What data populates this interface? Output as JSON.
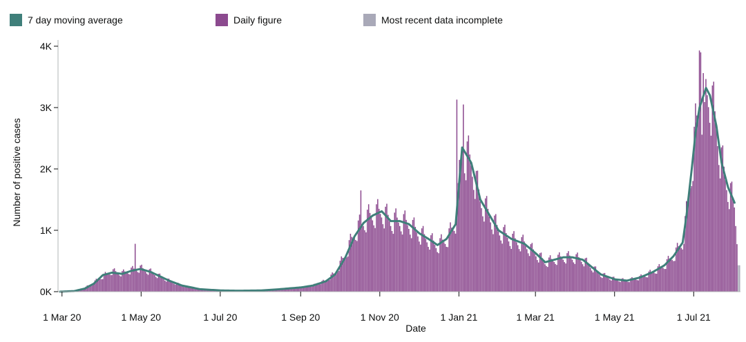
{
  "chart_data": {
    "type": "bar",
    "xlabel": "Date",
    "ylabel": "Number of positive cases",
    "y_ticks": [
      "0K",
      "1K",
      "2K",
      "3K",
      "4K"
    ],
    "ylim": [
      0,
      4000
    ],
    "x_ticks": [
      "1 Mar 20",
      "1 May 20",
      "1 Jul 20",
      "1 Sep 20",
      "1 Nov 20",
      "1 Jan 21",
      "1 Mar 21",
      "1 May 21",
      "1 Jul 21"
    ],
    "x_range": [
      "2020-02-28",
      "2021-08-05"
    ],
    "legend": {
      "placement": "top",
      "items": [
        {
          "label": "7 day moving average",
          "color": "#3f7f7a"
        },
        {
          "label": "Daily figure",
          "color": "#8c4a8f"
        },
        {
          "label": "Most recent data incomplete",
          "color": "#a9a9b8"
        }
      ]
    },
    "series": [
      {
        "name": "Daily figure",
        "color": "#8c4a8f",
        "values_by_date": [
          [
            "2020-02-28",
            0
          ],
          [
            "2020-03-10",
            10
          ],
          [
            "2020-03-18",
            60
          ],
          [
            "2020-03-25",
            150
          ],
          [
            "2020-04-01",
            250
          ],
          [
            "2020-04-08",
            330
          ],
          [
            "2020-04-16",
            300
          ],
          [
            "2020-04-23",
            350
          ],
          [
            "2020-04-30",
            380
          ],
          [
            "2020-05-08",
            320
          ],
          [
            "2020-05-15",
            250
          ],
          [
            "2020-05-22",
            180
          ],
          [
            "2020-06-01",
            100
          ],
          [
            "2020-06-15",
            40
          ],
          [
            "2020-07-01",
            20
          ],
          [
            "2020-07-15",
            15
          ],
          [
            "2020-08-01",
            20
          ],
          [
            "2020-08-15",
            40
          ],
          [
            "2020-09-01",
            70
          ],
          [
            "2020-09-10",
            100
          ],
          [
            "2020-09-20",
            180
          ],
          [
            "2020-09-27",
            300
          ],
          [
            "2020-10-05",
            600
          ],
          [
            "2020-10-12",
            950
          ],
          [
            "2020-10-19",
            1150
          ],
          [
            "2020-10-26",
            1250
          ],
          [
            "2020-11-02",
            1300
          ],
          [
            "2020-11-09",
            1150
          ],
          [
            "2020-11-16",
            1150
          ],
          [
            "2020-11-23",
            1100
          ],
          [
            "2020-12-01",
            950
          ],
          [
            "2020-12-08",
            850
          ],
          [
            "2020-12-15",
            750
          ],
          [
            "2020-12-22",
            850
          ],
          [
            "2020-12-29",
            1100
          ],
          [
            "2021-01-03",
            2300
          ],
          [
            "2021-01-10",
            2100
          ],
          [
            "2021-01-17",
            1500
          ],
          [
            "2021-01-24",
            1250
          ],
          [
            "2021-01-31",
            1000
          ],
          [
            "2021-02-10",
            850
          ],
          [
            "2021-02-20",
            780
          ],
          [
            "2021-03-01",
            620
          ],
          [
            "2021-03-08",
            480
          ],
          [
            "2021-03-15",
            520
          ],
          [
            "2021-03-22",
            560
          ],
          [
            "2021-03-29",
            560
          ],
          [
            "2021-04-06",
            520
          ],
          [
            "2021-04-13",
            400
          ],
          [
            "2021-04-20",
            280
          ],
          [
            "2021-05-01",
            200
          ],
          [
            "2021-05-10",
            180
          ],
          [
            "2021-05-20",
            230
          ],
          [
            "2021-05-30",
            320
          ],
          [
            "2021-06-08",
            430
          ],
          [
            "2021-06-15",
            580
          ],
          [
            "2021-06-22",
            800
          ],
          [
            "2021-06-25",
            1250
          ],
          [
            "2021-06-29",
            2000
          ],
          [
            "2021-07-02",
            2600
          ],
          [
            "2021-07-05",
            3000
          ],
          [
            "2021-07-10",
            3300
          ],
          [
            "2021-07-13",
            3200
          ],
          [
            "2021-07-18",
            2700
          ],
          [
            "2021-07-22",
            2100
          ],
          [
            "2021-07-27",
            1700
          ],
          [
            "2021-08-01",
            1400
          ],
          [
            "2021-08-03",
            900
          ]
        ],
        "spikes": [
          [
            "2020-04-26",
            780
          ],
          [
            "2020-10-17",
            1650
          ],
          [
            "2020-12-30",
            3130
          ],
          [
            "2021-01-04",
            3050
          ],
          [
            "2021-07-05",
            3930
          ],
          [
            "2021-07-06",
            3900
          ],
          [
            "2021-07-09",
            3090
          ]
        ]
      },
      {
        "name": "7 day moving average",
        "color": "#3f7f7a",
        "values_by_date": [
          [
            "2020-02-28",
            0
          ],
          [
            "2020-03-10",
            10
          ],
          [
            "2020-03-18",
            50
          ],
          [
            "2020-03-25",
            130
          ],
          [
            "2020-04-01",
            270
          ],
          [
            "2020-04-08",
            310
          ],
          [
            "2020-04-16",
            290
          ],
          [
            "2020-04-23",
            340
          ],
          [
            "2020-04-30",
            370
          ],
          [
            "2020-05-08",
            320
          ],
          [
            "2020-05-15",
            250
          ],
          [
            "2020-05-22",
            180
          ],
          [
            "2020-06-01",
            100
          ],
          [
            "2020-06-15",
            40
          ],
          [
            "2020-07-01",
            20
          ],
          [
            "2020-07-15",
            15
          ],
          [
            "2020-08-01",
            20
          ],
          [
            "2020-08-15",
            40
          ],
          [
            "2020-09-01",
            70
          ],
          [
            "2020-09-10",
            100
          ],
          [
            "2020-09-20",
            170
          ],
          [
            "2020-09-27",
            280
          ],
          [
            "2020-10-05",
            560
          ],
          [
            "2020-10-12",
            900
          ],
          [
            "2020-10-19",
            1120
          ],
          [
            "2020-10-26",
            1240
          ],
          [
            "2020-11-02",
            1310
          ],
          [
            "2020-11-09",
            1150
          ],
          [
            "2020-11-16",
            1150
          ],
          [
            "2020-11-23",
            1100
          ],
          [
            "2020-12-01",
            950
          ],
          [
            "2020-12-08",
            860
          ],
          [
            "2020-12-15",
            760
          ],
          [
            "2020-12-22",
            860
          ],
          [
            "2020-12-29",
            1100
          ],
          [
            "2021-01-03",
            2350
          ],
          [
            "2021-01-10",
            2100
          ],
          [
            "2021-01-17",
            1500
          ],
          [
            "2021-01-24",
            1250
          ],
          [
            "2021-01-31",
            1000
          ],
          [
            "2021-02-10",
            860
          ],
          [
            "2021-02-20",
            780
          ],
          [
            "2021-03-01",
            620
          ],
          [
            "2021-03-08",
            480
          ],
          [
            "2021-03-15",
            520
          ],
          [
            "2021-03-22",
            560
          ],
          [
            "2021-03-29",
            560
          ],
          [
            "2021-04-06",
            520
          ],
          [
            "2021-04-13",
            400
          ],
          [
            "2021-04-20",
            280
          ],
          [
            "2021-05-01",
            200
          ],
          [
            "2021-05-10",
            180
          ],
          [
            "2021-05-20",
            230
          ],
          [
            "2021-05-30",
            320
          ],
          [
            "2021-06-08",
            430
          ],
          [
            "2021-06-15",
            580
          ],
          [
            "2021-06-22",
            800
          ],
          [
            "2021-06-25",
            1250
          ],
          [
            "2021-06-29",
            2000
          ],
          [
            "2021-07-02",
            2600
          ],
          [
            "2021-07-05",
            3000
          ],
          [
            "2021-07-10",
            3320
          ],
          [
            "2021-07-13",
            3200
          ],
          [
            "2021-07-18",
            2700
          ],
          [
            "2021-07-22",
            2100
          ],
          [
            "2021-07-27",
            1700
          ],
          [
            "2021-08-01",
            1450
          ]
        ]
      },
      {
        "name": "Most recent data incomplete",
        "color": "#a9a9b8",
        "values_by_date": [
          [
            "2021-08-04",
            430
          ],
          [
            "2021-08-05",
            430
          ]
        ]
      }
    ],
    "grid": false
  }
}
